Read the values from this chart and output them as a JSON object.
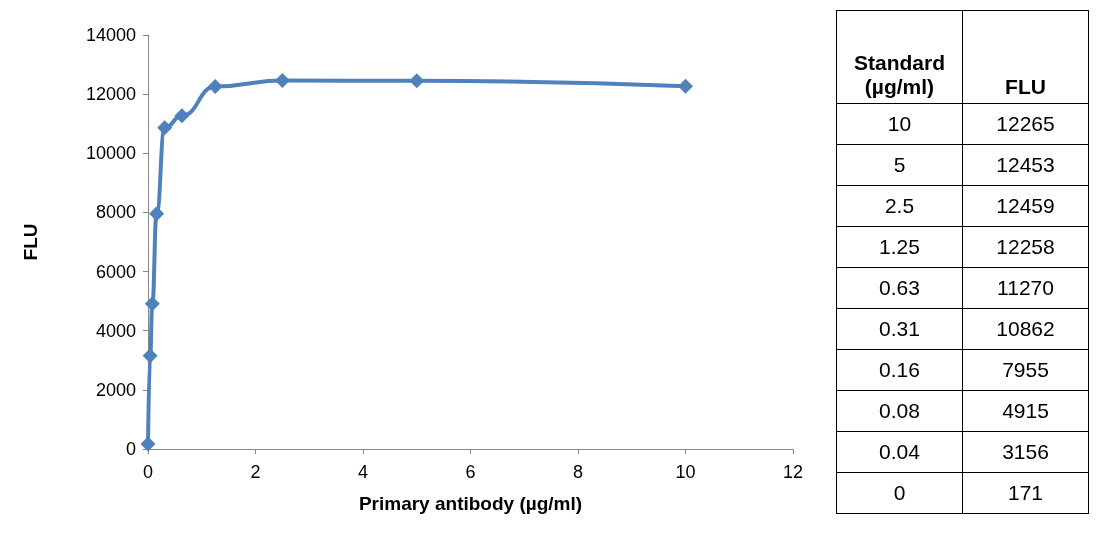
{
  "chart_data": [
    {
      "type": "line",
      "xlabel": "Primary antibody (µg/ml)",
      "ylabel": "FLU",
      "x": [
        0,
        0.04,
        0.08,
        0.16,
        0.31,
        0.63,
        1.25,
        2.5,
        5,
        10
      ],
      "values": [
        171,
        3156,
        4915,
        7955,
        10862,
        11270,
        12258,
        12459,
        12453,
        12265
      ],
      "color": "#4f81bd",
      "xlim": [
        0,
        12
      ],
      "xticks": [
        0,
        2,
        4,
        6,
        8,
        10,
        12
      ],
      "ylim": [
        0,
        14000
      ],
      "yticks": [
        0,
        2000,
        4000,
        6000,
        8000,
        10000,
        12000,
        14000
      ],
      "grid": false,
      "marker": "diamond",
      "line_style": "solid"
    },
    {
      "type": "other",
      "annotations": [
        "Standard (µg/ml)",
        "FLU",
        "10",
        "12265",
        "5",
        "12453",
        "2.5",
        "12459",
        "1.25",
        "12258",
        "0.63",
        "11270",
        "0.31",
        "10862",
        "0.16",
        "7955",
        "0.08",
        "4915",
        "0.04",
        "3156",
        "0",
        "171"
      ]
    }
  ]
}
